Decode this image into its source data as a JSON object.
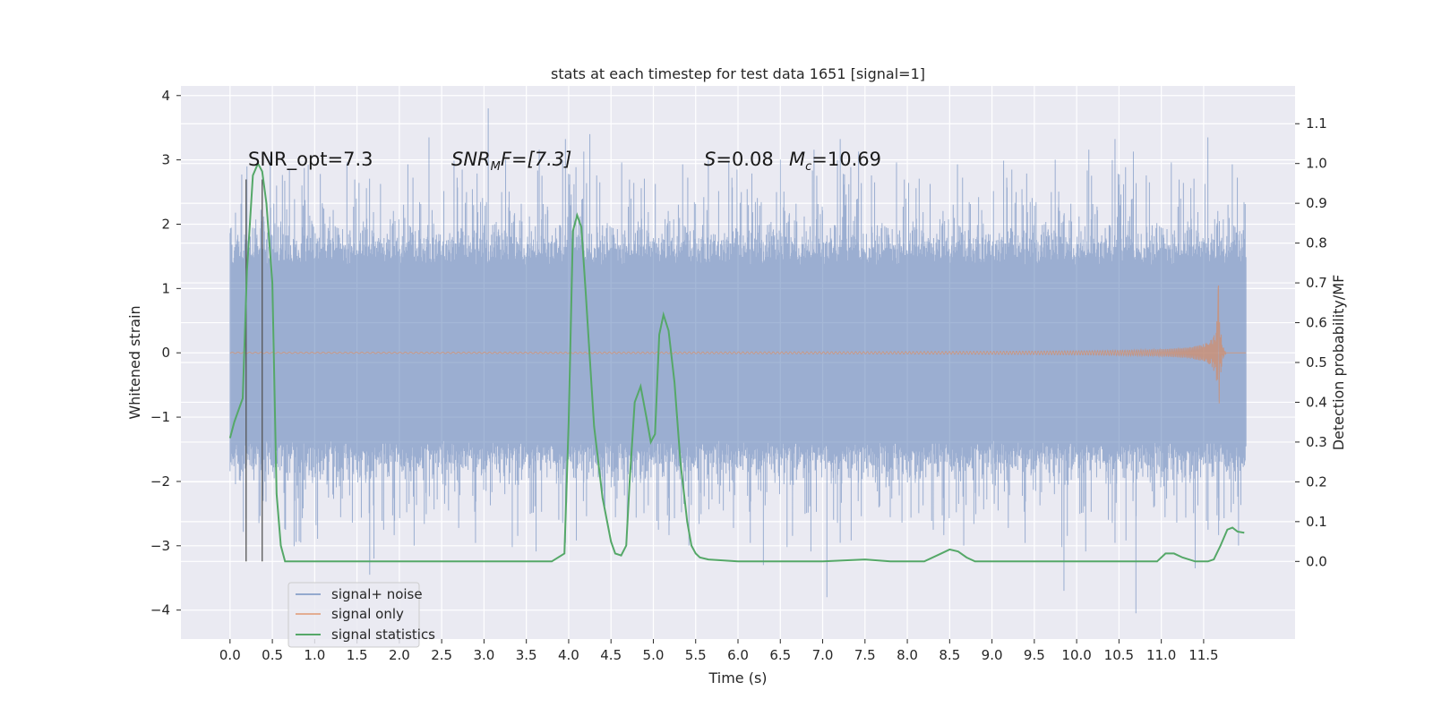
{
  "chart_data": {
    "type": "line",
    "title": "stats at each timestep for test data 1651 [signal=1]",
    "xlabel": "Time (s)",
    "ylabel_left": "Whitened strain",
    "ylabel_right": "Detection probability/MF",
    "xlim": [
      -0.58,
      12.58
    ],
    "ylim_left": [
      -4.45,
      4.15
    ],
    "ylim_right": [
      -0.195,
      1.195
    ],
    "xticks": [
      "0.0",
      "0.5",
      "1.0",
      "1.5",
      "2.0",
      "2.5",
      "3.0",
      "3.5",
      "4.0",
      "4.5",
      "5.0",
      "5.5",
      "6.0",
      "6.5",
      "7.0",
      "7.5",
      "8.0",
      "8.5",
      "9.0",
      "9.5",
      "10.0",
      "10.5",
      "11.0",
      "11.5"
    ],
    "yticks_left": [
      "−4",
      "−3",
      "−2",
      "−1",
      "0",
      "1",
      "2",
      "3",
      "4"
    ],
    "yticks_right": [
      "0.0",
      "0.1",
      "0.2",
      "0.3",
      "0.4",
      "0.5",
      "0.6",
      "0.7",
      "0.8",
      "0.9",
      "1.0",
      "1.1"
    ],
    "grid": true,
    "legend_position": "lower-left",
    "annotations": {
      "snr_opt": "SNR_opt=7.3",
      "snr_mf_main": "SNR",
      "snr_mf_sub": "M",
      "snr_mf_rest": "F=[7.3]",
      "s_sym": "S",
      "s_val": "=0.08",
      "mc_sym": "M",
      "mc_sub": "c",
      "mc_val": "=10.69"
    },
    "vlines_x": [
      0.19,
      0.38
    ],
    "series": [
      {
        "name": "signal+ noise",
        "color": "#4c72b0",
        "axis": "left",
        "t_range": [
          0.0,
          12.0
        ],
        "envelope_approx": [
          -2.2,
          2.2
        ],
        "peak_samples": [
          [
            0.2,
            2.9
          ],
          [
            0.55,
            2.6
          ],
          [
            1.65,
            -3.45
          ],
          [
            1.7,
            -3.2
          ],
          [
            2.35,
            3.35
          ],
          [
            3.05,
            3.8
          ],
          [
            4.25,
            3.4
          ],
          [
            5.65,
            3.0
          ],
          [
            6.3,
            -3.3
          ],
          [
            7.05,
            -3.8
          ],
          [
            9.85,
            -3.7
          ],
          [
            10.7,
            -4.05
          ],
          [
            11.4,
            -3.35
          ],
          [
            11.55,
            3.35
          ],
          [
            11.95,
            1.85
          ]
        ]
      },
      {
        "name": "signal only",
        "color": "#dd8452",
        "axis": "left",
        "t_range": [
          0.0,
          12.0
        ],
        "chirp_peak_time": 11.68,
        "chirp_peak_amplitude": [
          1.05,
          -1.1
        ]
      },
      {
        "name": "signal statistics",
        "color": "#55a868",
        "axis": "right",
        "x": [
          0.0,
          0.05,
          0.15,
          0.2,
          0.27,
          0.33,
          0.38,
          0.43,
          0.5,
          0.55,
          0.6,
          0.65,
          0.7,
          1.0,
          1.5,
          2.0,
          2.5,
          3.0,
          3.5,
          3.8,
          3.95,
          4.0,
          4.05,
          4.1,
          4.15,
          4.2,
          4.3,
          4.4,
          4.5,
          4.55,
          4.62,
          4.68,
          4.72,
          4.78,
          4.85,
          4.92,
          4.97,
          5.02,
          5.07,
          5.12,
          5.18,
          5.25,
          5.32,
          5.4,
          5.45,
          5.5,
          5.55,
          5.65,
          6.0,
          6.5,
          7.0,
          7.5,
          7.8,
          8.0,
          8.2,
          8.4,
          8.5,
          8.6,
          8.7,
          8.8,
          9.5,
          10.0,
          10.5,
          10.8,
          10.95,
          11.05,
          11.15,
          11.25,
          11.4,
          11.55,
          11.62,
          11.7,
          11.78,
          11.84,
          11.9,
          11.98
        ],
        "y": [
          0.31,
          0.35,
          0.41,
          0.73,
          0.97,
          1.0,
          0.98,
          0.9,
          0.7,
          0.17,
          0.04,
          0.0,
          0.0,
          0.0,
          0.0,
          0.0,
          0.0,
          0.0,
          0.0,
          0.0,
          0.02,
          0.35,
          0.83,
          0.87,
          0.84,
          0.68,
          0.34,
          0.16,
          0.05,
          0.02,
          0.015,
          0.04,
          0.2,
          0.4,
          0.44,
          0.36,
          0.3,
          0.32,
          0.57,
          0.62,
          0.58,
          0.45,
          0.25,
          0.1,
          0.04,
          0.02,
          0.01,
          0.005,
          0.0,
          0.0,
          0.0,
          0.005,
          0.0,
          0.0,
          0.0,
          0.02,
          0.03,
          0.025,
          0.01,
          0.0,
          0.0,
          0.0,
          0.0,
          0.0,
          0.0,
          0.02,
          0.02,
          0.01,
          0.0,
          0.0,
          0.005,
          0.04,
          0.08,
          0.085,
          0.075,
          0.072
        ]
      }
    ]
  }
}
